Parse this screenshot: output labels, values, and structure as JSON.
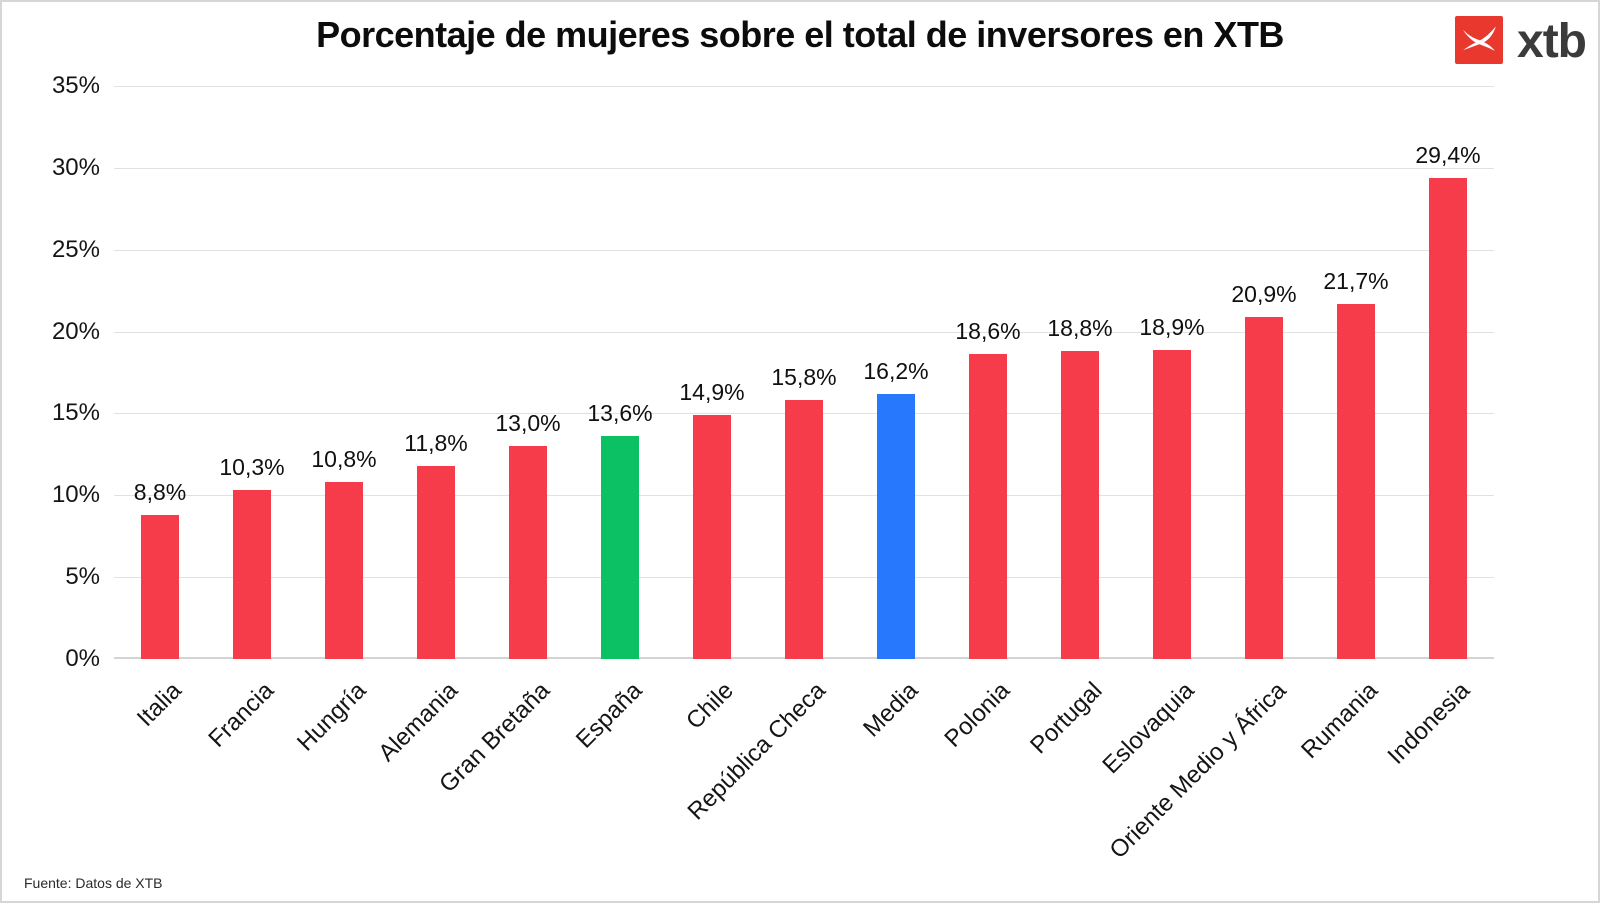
{
  "page": {
    "title": "Porcentaje de mujeres sobre el total de inversores en XTB",
    "source": "Fuente: Datos de XTB",
    "logo_text": "xtb",
    "logo_mark_color": "#e9392e",
    "logo_text_color": "#3b3b3b",
    "border_color": "#d6d6d6"
  },
  "chart_data": {
    "type": "bar",
    "title": "Porcentaje de mujeres sobre el total de inversores en XTB",
    "xlabel": "",
    "ylabel": "",
    "ylim": [
      0,
      35
    ],
    "grid": true,
    "legend": false,
    "value_label_format": "comma-decimal-percent",
    "y_axis": {
      "max": 35,
      "step": 5,
      "ticks_top_to_bottom": [
        "35%",
        "30%",
        "25%",
        "20%",
        "15%",
        "10%",
        "5%",
        "0%"
      ]
    },
    "colors": {
      "default": "#f63b4a",
      "espana_highlight": "#0bc163",
      "media_highlight": "#2778fc"
    },
    "bars": [
      {
        "category": "Italia",
        "value": 8.8,
        "label": "8,8%",
        "color": "#f63b4a"
      },
      {
        "category": "Francia",
        "value": 10.3,
        "label": "10,3%",
        "color": "#f63b4a"
      },
      {
        "category": "Hungría",
        "value": 10.8,
        "label": "10,8%",
        "color": "#f63b4a"
      },
      {
        "category": "Alemania",
        "value": 11.8,
        "label": "11,8%",
        "color": "#f63b4a"
      },
      {
        "category": "Gran Bretaña",
        "value": 13.0,
        "label": "13,0%",
        "color": "#f63b4a"
      },
      {
        "category": "España",
        "value": 13.6,
        "label": "13,6%",
        "color": "#0bc163"
      },
      {
        "category": "Chile",
        "value": 14.9,
        "label": "14,9%",
        "color": "#f63b4a"
      },
      {
        "category": "República Checa",
        "value": 15.8,
        "label": "15,8%",
        "color": "#f63b4a"
      },
      {
        "category": "Media",
        "value": 16.2,
        "label": "16,2%",
        "color": "#2778fc"
      },
      {
        "category": "Polonia",
        "value": 18.6,
        "label": "18,6%",
        "color": "#f63b4a"
      },
      {
        "category": "Portugal",
        "value": 18.8,
        "label": "18,8%",
        "color": "#f63b4a"
      },
      {
        "category": "Eslovaquia",
        "value": 18.9,
        "label": "18,9%",
        "color": "#f63b4a"
      },
      {
        "category": "Oriente Medio y África",
        "value": 20.9,
        "label": "20,9%",
        "color": "#f63b4a"
      },
      {
        "category": "Rumania",
        "value": 21.7,
        "label": "21,7%",
        "color": "#f63b4a"
      },
      {
        "category": "Indonesia",
        "value": 29.4,
        "label": "29,4%",
        "color": "#f63b4a"
      }
    ]
  }
}
